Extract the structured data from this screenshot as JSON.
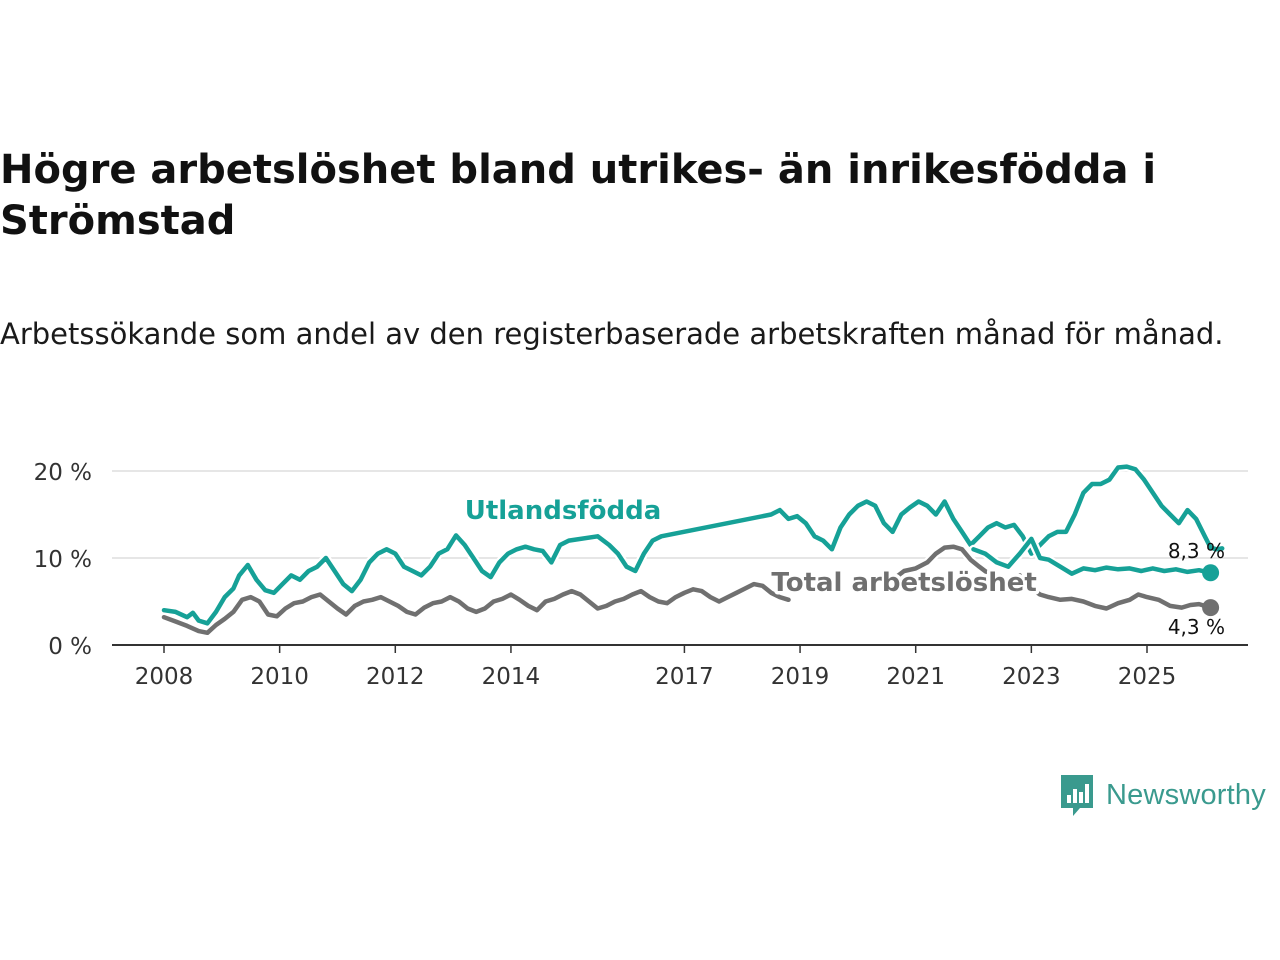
{
  "title": "Högre arbetslöshet bland utrikes- än inrikesfödda i Strömstad",
  "subtitle": "Arbetssökande som andel av den registerbaserade arbetskraften månad för månad.",
  "brand": {
    "name": "Newsworthy",
    "icon": "newsworthy-logo-icon",
    "color": "#3a9a8e"
  },
  "chart_data": {
    "type": "line",
    "title": "Högre arbetslöshet bland utrikes- än inrikesfödda i Strömstad",
    "subtitle": "Arbetssökande som andel av den registerbaserade arbetskraften månad för månad.",
    "xlabel": "",
    "ylabel": "",
    "ylim": [
      0,
      20
    ],
    "xlim": [
      2007.8,
      2026.4
    ],
    "y_ticks": [
      0,
      10,
      20
    ],
    "y_tick_labels": [
      "0 %",
      "10 %",
      "20 %"
    ],
    "x_ticks": [
      2008,
      2010,
      2012,
      2014,
      2017,
      2019,
      2021,
      2023,
      2025
    ],
    "x_tick_labels": [
      "2008",
      "2010",
      "2012",
      "2014",
      "2017",
      "2019",
      "2021",
      "2023",
      "2025"
    ],
    "grid": true,
    "series": [
      {
        "name": "Utlandsfödda",
        "color": "#16a197",
        "end_label": "8,3 %",
        "points": [
          [
            2008.0,
            4.0
          ],
          [
            2008.2,
            3.8
          ],
          [
            2008.4,
            3.2
          ],
          [
            2008.5,
            3.7
          ],
          [
            2008.6,
            2.8
          ],
          [
            2008.75,
            2.5
          ],
          [
            2008.9,
            3.8
          ],
          [
            2009.05,
            5.5
          ],
          [
            2009.2,
            6.5
          ],
          [
            2009.3,
            8.0
          ],
          [
            2009.45,
            9.2
          ],
          [
            2009.6,
            7.5
          ],
          [
            2009.75,
            6.3
          ],
          [
            2009.9,
            6.0
          ],
          [
            2010.05,
            7.0
          ],
          [
            2010.2,
            8.0
          ],
          [
            2010.35,
            7.5
          ],
          [
            2010.5,
            8.5
          ],
          [
            2010.65,
            9.0
          ],
          [
            2010.8,
            10.0
          ],
          [
            2010.95,
            8.5
          ],
          [
            2011.1,
            7.0
          ],
          [
            2011.25,
            6.2
          ],
          [
            2011.4,
            7.5
          ],
          [
            2011.55,
            9.5
          ],
          [
            2011.7,
            10.5
          ],
          [
            2011.85,
            11.0
          ],
          [
            2012.0,
            10.5
          ],
          [
            2012.15,
            9.0
          ],
          [
            2012.3,
            8.5
          ],
          [
            2012.45,
            8.0
          ],
          [
            2012.6,
            9.0
          ],
          [
            2012.75,
            10.5
          ],
          [
            2012.9,
            11.0
          ],
          [
            2013.05,
            12.6
          ],
          [
            2013.2,
            11.5
          ],
          [
            2013.35,
            10.0
          ],
          [
            2013.5,
            8.5
          ],
          [
            2013.65,
            7.8
          ],
          [
            2013.8,
            9.5
          ],
          [
            2013.95,
            10.5
          ],
          [
            2014.1,
            11.0
          ],
          [
            2014.25,
            11.3
          ],
          [
            2014.4,
            11.0
          ],
          [
            2014.55,
            10.8
          ],
          [
            2014.7,
            9.5
          ],
          [
            2014.85,
            11.5
          ],
          [
            2015.0,
            12.0
          ],
          [
            2015.5,
            12.5
          ],
          [
            2015.7,
            11.5
          ],
          [
            2015.85,
            10.5
          ],
          [
            2016.0,
            9.0
          ],
          [
            2016.15,
            8.5
          ],
          [
            2016.3,
            10.5
          ],
          [
            2016.45,
            12.0
          ],
          [
            2016.6,
            12.5
          ],
          [
            2018.5,
            15.0
          ],
          [
            2018.65,
            15.5
          ],
          [
            2018.8,
            14.5
          ],
          [
            2018.95,
            14.8
          ],
          [
            2019.1,
            14.0
          ],
          [
            2019.25,
            12.5
          ],
          [
            2019.4,
            12.0
          ],
          [
            2019.55,
            11.0
          ],
          [
            2019.7,
            13.5
          ],
          [
            2019.85,
            15.0
          ],
          [
            2020.0,
            16.0
          ],
          [
            2020.15,
            16.5
          ],
          [
            2020.3,
            16.0
          ],
          [
            2020.45,
            14.0
          ],
          [
            2020.6,
            13.0
          ],
          [
            2020.75,
            15.0
          ],
          [
            2020.9,
            15.8
          ],
          [
            2021.05,
            16.5
          ],
          [
            2021.2,
            16.0
          ],
          [
            2021.35,
            15.0
          ],
          [
            2021.5,
            16.5
          ],
          [
            2021.65,
            14.5
          ],
          [
            2021.8,
            13.0
          ],
          [
            2021.95,
            11.5
          ],
          [
            2022.1,
            12.5
          ],
          [
            2022.25,
            13.5
          ],
          [
            2022.4,
            14.0
          ],
          [
            2022.55,
            13.5
          ],
          [
            2022.7,
            13.8
          ],
          [
            2022.85,
            12.5
          ],
          [
            2023.0,
            10.5
          ],
          [
            2023.15,
            11.5
          ],
          [
            2023.3,
            12.5
          ],
          [
            2023.45,
            13.0
          ],
          [
            2023.6,
            13.0
          ],
          [
            2023.75,
            15.0
          ],
          [
            2023.9,
            17.5
          ],
          [
            2024.05,
            18.5
          ],
          [
            2024.2,
            18.5
          ],
          [
            2024.35,
            19.0
          ],
          [
            2024.5,
            20.4
          ],
          [
            2024.65,
            20.5
          ],
          [
            2024.8,
            20.2
          ],
          [
            2024.95,
            19.0
          ],
          [
            2025.1,
            17.5
          ],
          [
            2025.25,
            16.0
          ],
          [
            2025.4,
            15.0
          ],
          [
            2025.55,
            14.0
          ],
          [
            2025.7,
            15.5
          ],
          [
            2025.85,
            14.5
          ],
          [
            2026.0,
            12.5
          ],
          [
            2026.1,
            11.2
          ],
          [
            2026.2,
            11.0
          ],
          [
            2026.3,
            11.1
          ]
        ],
        "points_tail": [
          [
            2022.0,
            11.0
          ],
          [
            2022.2,
            10.5
          ],
          [
            2022.4,
            9.5
          ],
          [
            2022.6,
            9.0
          ],
          [
            2022.8,
            10.5
          ],
          [
            2023.0,
            12.2
          ],
          [
            2023.15,
            10.0
          ],
          [
            2023.3,
            9.8
          ],
          [
            2023.5,
            9.0
          ],
          [
            2023.7,
            8.2
          ],
          [
            2023.9,
            8.8
          ],
          [
            2024.1,
            8.6
          ],
          [
            2024.3,
            8.9
          ],
          [
            2024.5,
            8.7
          ],
          [
            2024.7,
            8.8
          ],
          [
            2024.9,
            8.5
          ],
          [
            2025.1,
            8.8
          ],
          [
            2025.3,
            8.5
          ],
          [
            2025.5,
            8.7
          ],
          [
            2025.7,
            8.4
          ],
          [
            2025.9,
            8.6
          ],
          [
            2026.1,
            8.3
          ]
        ]
      },
      {
        "name": "Total arbetslöshet",
        "color": "#707070",
        "end_label": "4,3 %",
        "points": [
          [
            2008.0,
            3.2
          ],
          [
            2008.2,
            2.7
          ],
          [
            2008.4,
            2.2
          ],
          [
            2008.6,
            1.6
          ],
          [
            2008.75,
            1.4
          ],
          [
            2008.9,
            2.3
          ],
          [
            2009.05,
            3.0
          ],
          [
            2009.2,
            3.8
          ],
          [
            2009.35,
            5.2
          ],
          [
            2009.5,
            5.5
          ],
          [
            2009.65,
            5.0
          ],
          [
            2009.8,
            3.5
          ],
          [
            2009.95,
            3.3
          ],
          [
            2010.1,
            4.2
          ],
          [
            2010.25,
            4.8
          ],
          [
            2010.4,
            5.0
          ],
          [
            2010.55,
            5.5
          ],
          [
            2010.7,
            5.8
          ],
          [
            2010.85,
            5.0
          ],
          [
            2011.0,
            4.2
          ],
          [
            2011.15,
            3.5
          ],
          [
            2011.3,
            4.5
          ],
          [
            2011.45,
            5.0
          ],
          [
            2011.6,
            5.2
          ],
          [
            2011.75,
            5.5
          ],
          [
            2011.9,
            5.0
          ],
          [
            2012.05,
            4.5
          ],
          [
            2012.2,
            3.8
          ],
          [
            2012.35,
            3.5
          ],
          [
            2012.5,
            4.3
          ],
          [
            2012.65,
            4.8
          ],
          [
            2012.8,
            5.0
          ],
          [
            2012.95,
            5.5
          ],
          [
            2013.1,
            5.0
          ],
          [
            2013.25,
            4.2
          ],
          [
            2013.4,
            3.8
          ],
          [
            2013.55,
            4.2
          ],
          [
            2013.7,
            5.0
          ],
          [
            2013.85,
            5.3
          ],
          [
            2014.0,
            5.8
          ],
          [
            2014.15,
            5.2
          ],
          [
            2014.3,
            4.5
          ],
          [
            2014.45,
            4.0
          ],
          [
            2014.6,
            5.0
          ],
          [
            2014.75,
            5.3
          ],
          [
            2014.9,
            5.8
          ],
          [
            2015.05,
            6.2
          ],
          [
            2015.2,
            5.8
          ],
          [
            2015.35,
            5.0
          ],
          [
            2015.5,
            4.2
          ],
          [
            2015.65,
            4.5
          ],
          [
            2015.8,
            5.0
          ],
          [
            2015.95,
            5.3
          ],
          [
            2016.1,
            5.8
          ],
          [
            2016.25,
            6.2
          ],
          [
            2016.4,
            5.5
          ],
          [
            2016.55,
            5.0
          ],
          [
            2016.7,
            4.8
          ],
          [
            2016.85,
            5.5
          ],
          [
            2017.0,
            6.0
          ],
          [
            2017.15,
            6.4
          ],
          [
            2017.3,
            6.2
          ],
          [
            2017.45,
            5.5
          ],
          [
            2017.6,
            5.0
          ],
          [
            2017.75,
            5.5
          ],
          [
            2017.9,
            6.0
          ],
          [
            2018.05,
            6.5
          ],
          [
            2018.2,
            7.0
          ],
          [
            2018.35,
            6.8
          ],
          [
            2018.5,
            6.0
          ],
          [
            2018.65,
            5.5
          ],
          [
            2018.8,
            5.2
          ]
        ],
        "points_mid": [
          [
            2020.6,
            7.5
          ],
          [
            2020.8,
            8.5
          ],
          [
            2021.0,
            8.8
          ],
          [
            2021.2,
            9.5
          ],
          [
            2021.35,
            10.5
          ],
          [
            2021.5,
            11.2
          ],
          [
            2021.65,
            11.3
          ],
          [
            2021.8,
            11.0
          ],
          [
            2021.95,
            9.8
          ],
          [
            2022.1,
            9.0
          ],
          [
            2022.3,
            8.0
          ],
          [
            2022.5,
            7.5
          ],
          [
            2022.65,
            7.0
          ],
          [
            2022.8,
            8.0
          ]
        ],
        "points_tail": [
          [
            2023.0,
            6.5
          ],
          [
            2023.15,
            5.8
          ],
          [
            2023.3,
            5.5
          ],
          [
            2023.5,
            5.2
          ],
          [
            2023.7,
            5.3
          ],
          [
            2023.9,
            5.0
          ],
          [
            2024.1,
            4.5
          ],
          [
            2024.3,
            4.2
          ],
          [
            2024.5,
            4.8
          ],
          [
            2024.7,
            5.2
          ],
          [
            2024.85,
            5.8
          ],
          [
            2025.0,
            5.5
          ],
          [
            2025.2,
            5.2
          ],
          [
            2025.4,
            4.5
          ],
          [
            2025.6,
            4.3
          ],
          [
            2025.75,
            4.6
          ],
          [
            2025.9,
            4.7
          ],
          [
            2026.1,
            4.3
          ]
        ]
      }
    ],
    "annotations": [
      {
        "text": "Utlandsfödda",
        "series": "Utlandsfödda",
        "x": 2014.9,
        "y": 14.5
      },
      {
        "text": "Total arbetslöshet",
        "series": "Total arbetslöshet",
        "x": 2020.8,
        "y": 6.2
      }
    ]
  }
}
